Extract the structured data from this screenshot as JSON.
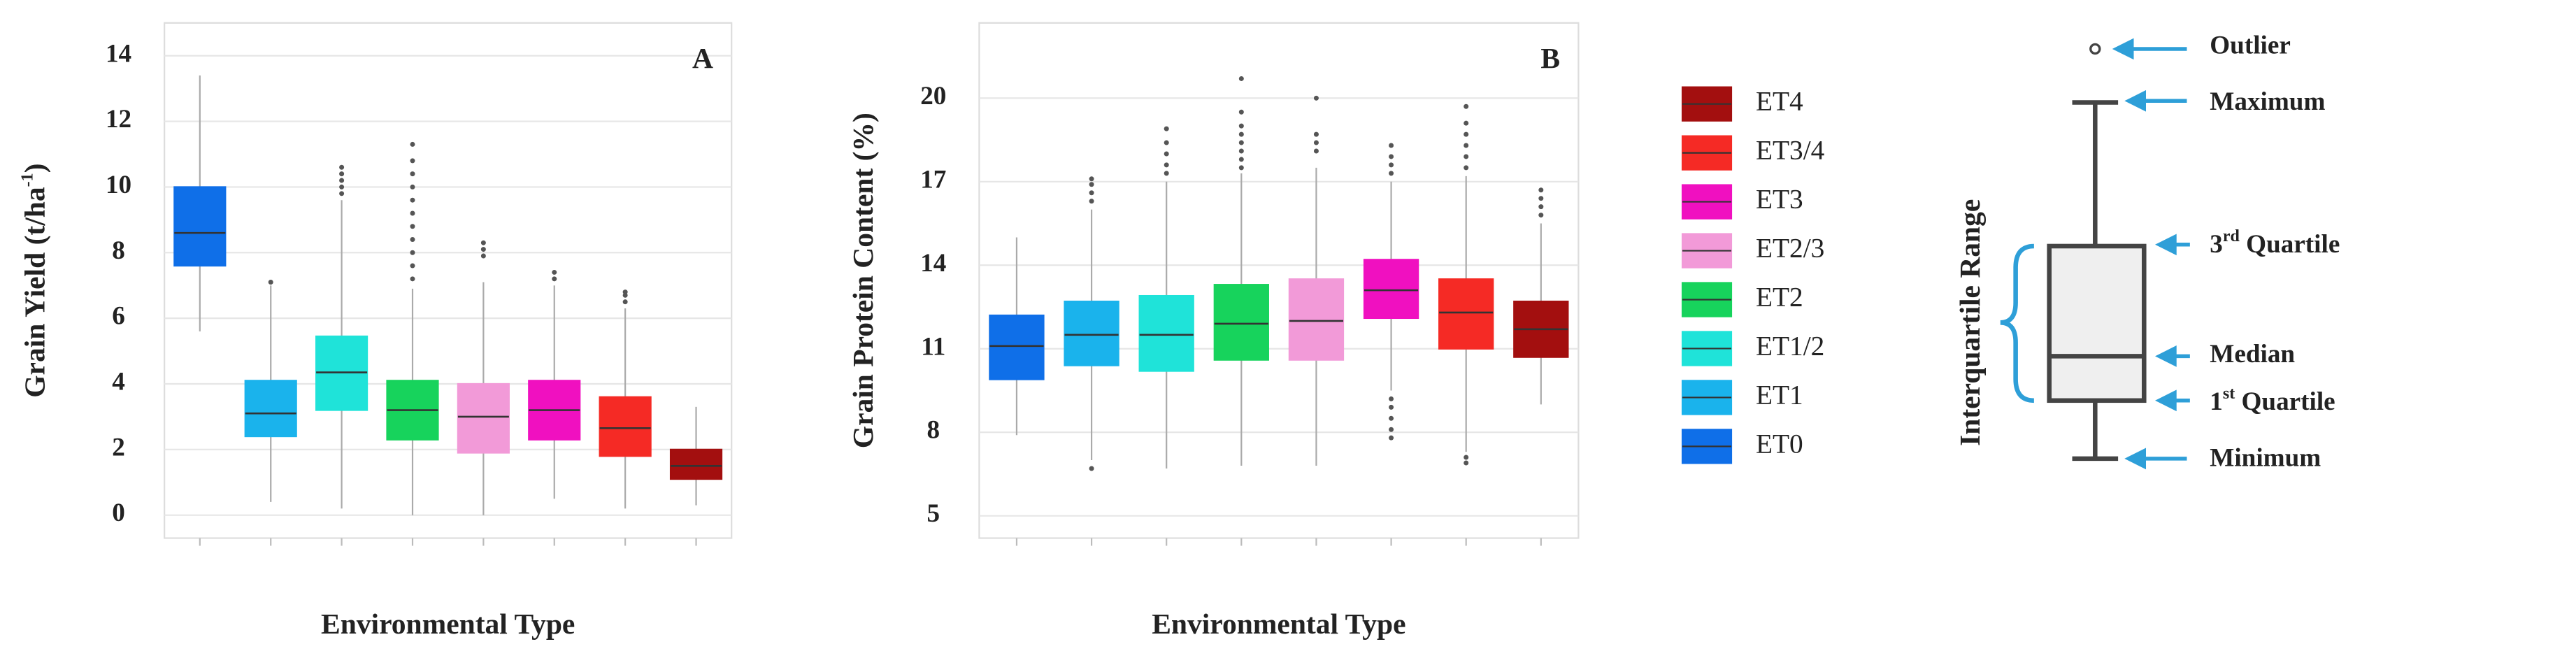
{
  "chart_data": [
    {
      "type": "box",
      "label": "A",
      "ylabel": [
        "Grain Yield (t/ha",
        "-1",
        ")"
      ],
      "xlabel": "Environmental Type",
      "categories": [
        null,
        null,
        null,
        null,
        null,
        null,
        null,
        null
      ],
      "ylim": [
        -0.7,
        15
      ],
      "yticks": [
        0,
        2,
        4,
        6,
        8,
        10,
        12,
        14
      ],
      "grid": true,
      "boxes": [
        {
          "min": 5.6,
          "q1": 7.6,
          "median": 8.6,
          "q3": 10.0,
          "max": 13.4,
          "outliers": []
        },
        {
          "min": 0.4,
          "q1": 2.4,
          "median": 3.1,
          "q3": 4.1,
          "max": 7.0,
          "outliers": [
            7.1
          ]
        },
        {
          "min": 0.2,
          "q1": 3.2,
          "median": 4.35,
          "q3": 5.45,
          "max": 9.6,
          "outliers": [
            9.8,
            10.0,
            10.2,
            10.4,
            10.6
          ]
        },
        {
          "min": 0.0,
          "q1": 2.3,
          "median": 3.2,
          "q3": 4.1,
          "max": 6.9,
          "outliers": [
            7.2,
            7.6,
            8.0,
            8.4,
            8.8,
            9.2,
            9.6,
            10.0,
            10.4,
            10.8,
            11.3
          ]
        },
        {
          "min": 0.0,
          "q1": 1.9,
          "median": 3.0,
          "q3": 4.0,
          "max": 7.1,
          "outliers": [
            7.9,
            8.1,
            8.3
          ]
        },
        {
          "min": 0.5,
          "q1": 2.3,
          "median": 3.2,
          "q3": 4.1,
          "max": 7.0,
          "outliers": [
            7.2,
            7.4
          ]
        },
        {
          "min": 0.2,
          "q1": 1.8,
          "median": 2.65,
          "q3": 3.6,
          "max": 6.3,
          "outliers": [
            6.5,
            6.7,
            6.8
          ]
        },
        {
          "min": 0.3,
          "q1": 1.1,
          "median": 1.5,
          "q3": 2.0,
          "max": 3.3,
          "outliers": []
        }
      ]
    },
    {
      "type": "box",
      "label": "B",
      "ylabel": "Grain Protein Content (%)",
      "xlabel": "Environmental Type",
      "categories": [
        null,
        null,
        null,
        null,
        null,
        null,
        null,
        null
      ],
      "ylim": [
        4.2,
        22.7
      ],
      "yticks": [
        5,
        8,
        11,
        14,
        17,
        20
      ],
      "grid": true,
      "boxes": [
        {
          "min": 7.9,
          "q1": 9.9,
          "median": 11.1,
          "q3": 12.2,
          "max": 15.0,
          "outliers": []
        },
        {
          "min": 7.0,
          "q1": 10.4,
          "median": 11.5,
          "q3": 12.7,
          "max": 16.0,
          "outliers": [
            6.7,
            16.3,
            16.6,
            16.9,
            17.1
          ]
        },
        {
          "min": 6.7,
          "q1": 10.2,
          "median": 11.5,
          "q3": 12.9,
          "max": 17.0,
          "outliers": [
            17.3,
            17.6,
            18.0,
            18.4,
            18.9
          ]
        },
        {
          "min": 6.8,
          "q1": 10.6,
          "median": 11.9,
          "q3": 13.3,
          "max": 17.3,
          "outliers": [
            17.5,
            17.8,
            18.1,
            18.4,
            18.7,
            19.0,
            19.5,
            20.7
          ]
        },
        {
          "min": 6.8,
          "q1": 10.6,
          "median": 12.0,
          "q3": 13.5,
          "max": 17.5,
          "outliers": [
            18.1,
            18.4,
            18.7,
            20.0
          ]
        },
        {
          "min": 9.5,
          "q1": 12.1,
          "median": 13.1,
          "q3": 14.2,
          "max": 17.0,
          "outliers": [
            7.8,
            8.1,
            8.5,
            8.9,
            9.2,
            17.3,
            17.6,
            17.9,
            18.3
          ]
        },
        {
          "min": 7.3,
          "q1": 11.0,
          "median": 12.3,
          "q3": 13.5,
          "max": 17.2,
          "outliers": [
            6.9,
            7.1,
            17.5,
            17.9,
            18.3,
            18.7,
            19.1,
            19.7
          ]
        },
        {
          "min": 9.0,
          "q1": 10.7,
          "median": 11.7,
          "q3": 12.7,
          "max": 15.5,
          "outliers": [
            15.8,
            16.1,
            16.4,
            16.7
          ]
        }
      ]
    }
  ],
  "legend": [
    {
      "name": "ET4",
      "color": "#a30f0f"
    },
    {
      "name": "ET3/4",
      "color": "#f52a25"
    },
    {
      "name": "ET3",
      "color": "#f010c0"
    },
    {
      "name": "ET2/3",
      "color": "#f29ad8"
    },
    {
      "name": "ET2",
      "color": "#17d35c"
    },
    {
      "name": "ET1/2",
      "color": "#1fe3d9"
    },
    {
      "name": "ET1",
      "color": "#1ab3ec"
    },
    {
      "name": "ET0",
      "color": "#0f6fe8"
    }
  ],
  "diagram": {
    "range_label": "Interquartile Range",
    "outlier": "Outlier",
    "maximum": "Maximum",
    "q3": [
      "3",
      "rd",
      " Quartile"
    ],
    "median": "Median",
    "q1": [
      "1",
      "st",
      " Quartile"
    ],
    "minimum": "Minimum"
  }
}
